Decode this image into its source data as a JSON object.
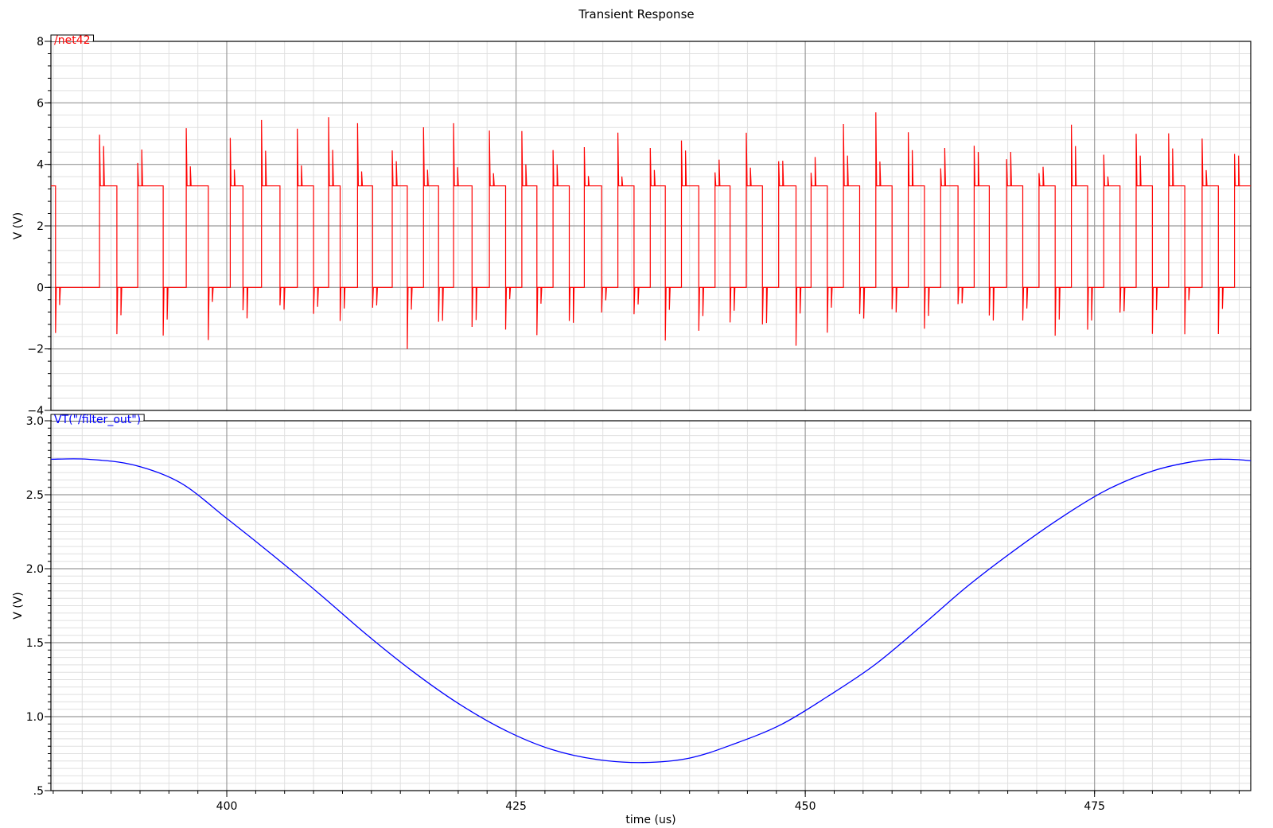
{
  "title": "Transient Response",
  "chart_data": [
    {
      "type": "line",
      "legend": "/net42",
      "color": "#ff0000",
      "ylabel": "V (V)",
      "xlim": [
        384.8,
        488.5
      ],
      "ylim": [
        -4,
        8
      ],
      "y_ticks": [
        8,
        6,
        4,
        2,
        0,
        -2,
        -4
      ],
      "y_tick_labels": [
        "8",
        "6",
        "4",
        "2",
        "0",
        "−2",
        "−4"
      ],
      "grid": true,
      "waveform": {
        "kind": "square_with_spikes",
        "high_level": 3.3,
        "low_level": 0.0,
        "spike_max": 5.7,
        "spike_min": -2.05,
        "edge_times": [
          385.2,
          389.0,
          390.5,
          392.3,
          394.5,
          396.5,
          398.4,
          400.3,
          401.4,
          403.0,
          404.6,
          406.1,
          407.5,
          408.8,
          409.8,
          411.3,
          412.6,
          414.3,
          415.6,
          417.0,
          418.3,
          419.6,
          421.2,
          422.7,
          424.1,
          425.5,
          426.8,
          428.2,
          429.6,
          430.9,
          432.4,
          433.8,
          435.2,
          436.6,
          437.9,
          439.3,
          440.8,
          442.2,
          443.5,
          444.9,
          446.3,
          447.7,
          449.2,
          450.5,
          451.9,
          453.3,
          454.7,
          456.1,
          457.5,
          458.9,
          460.3,
          461.7,
          463.2,
          464.6,
          465.9,
          467.4,
          468.8,
          470.2,
          471.6,
          473.0,
          474.4,
          475.8,
          477.2,
          478.6,
          480.0,
          481.4,
          482.8,
          484.3,
          485.7,
          487.1
        ]
      }
    },
    {
      "type": "line",
      "legend": "VT(\"/filter_out\")",
      "color": "#0000ff",
      "ylabel": "V (V)",
      "xlabel": "time (us)",
      "xlim": [
        384.8,
        488.5
      ],
      "ylim": [
        0.5,
        3.0
      ],
      "y_ticks": [
        3.0,
        2.5,
        2.0,
        1.5,
        1.0,
        0.5
      ],
      "y_tick_labels": [
        "3.0",
        "2.5",
        "2.0",
        "1.5",
        "1.0",
        ".5"
      ],
      "x_ticks": [
        400,
        425,
        450,
        475
      ],
      "x_tick_labels": [
        "400",
        "425",
        "450",
        "475"
      ],
      "grid": true,
      "points": [
        [
          384.8,
          2.74
        ],
        [
          388.0,
          2.74
        ],
        [
          392.0,
          2.7
        ],
        [
          396.0,
          2.58
        ],
        [
          400.0,
          2.34
        ],
        [
          404.0,
          2.09
        ],
        [
          408.0,
          1.83
        ],
        [
          412.0,
          1.56
        ],
        [
          416.0,
          1.31
        ],
        [
          420.0,
          1.09
        ],
        [
          424.0,
          0.91
        ],
        [
          428.0,
          0.78
        ],
        [
          432.0,
          0.71
        ],
        [
          436.0,
          0.69
        ],
        [
          440.0,
          0.72
        ],
        [
          444.0,
          0.82
        ],
        [
          448.0,
          0.95
        ],
        [
          452.0,
          1.14
        ],
        [
          456.0,
          1.35
        ],
        [
          460.0,
          1.61
        ],
        [
          464.0,
          1.88
        ],
        [
          468.0,
          2.12
        ],
        [
          472.0,
          2.34
        ],
        [
          476.0,
          2.53
        ],
        [
          480.0,
          2.66
        ],
        [
          484.0,
          2.73
        ],
        [
          486.5,
          2.74
        ],
        [
          488.5,
          2.73
        ]
      ]
    }
  ]
}
